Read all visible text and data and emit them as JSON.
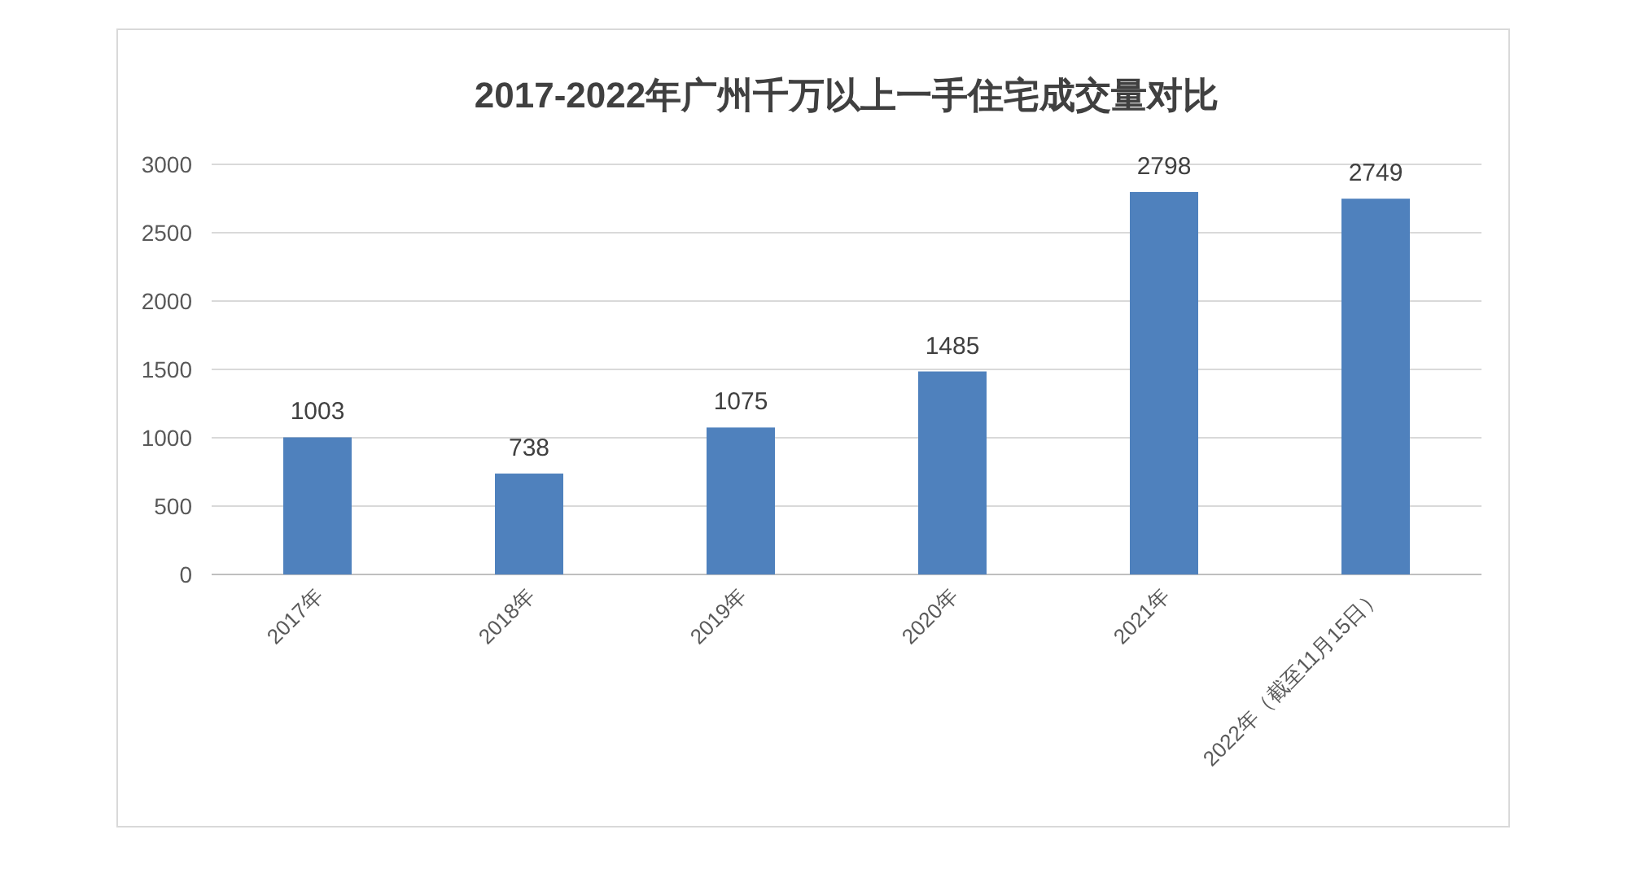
{
  "chart_data": {
    "type": "bar",
    "title": "2017-2022年广州千万以上一手住宅成交量对比",
    "categories": [
      "2017年",
      "2018年",
      "2019年",
      "2020年",
      "2021年",
      "2022年（截至11月15日）"
    ],
    "series": [
      {
        "color": "#4f81bd",
        "values": [
          1003,
          738,
          1075,
          1485,
          2798,
          2749
        ]
      }
    ],
    "data_labels": true,
    "ylim": [
      0,
      3000
    ],
    "yticks": [
      0,
      500,
      1000,
      1500,
      2000,
      2500,
      3000
    ],
    "grid": "y"
  }
}
